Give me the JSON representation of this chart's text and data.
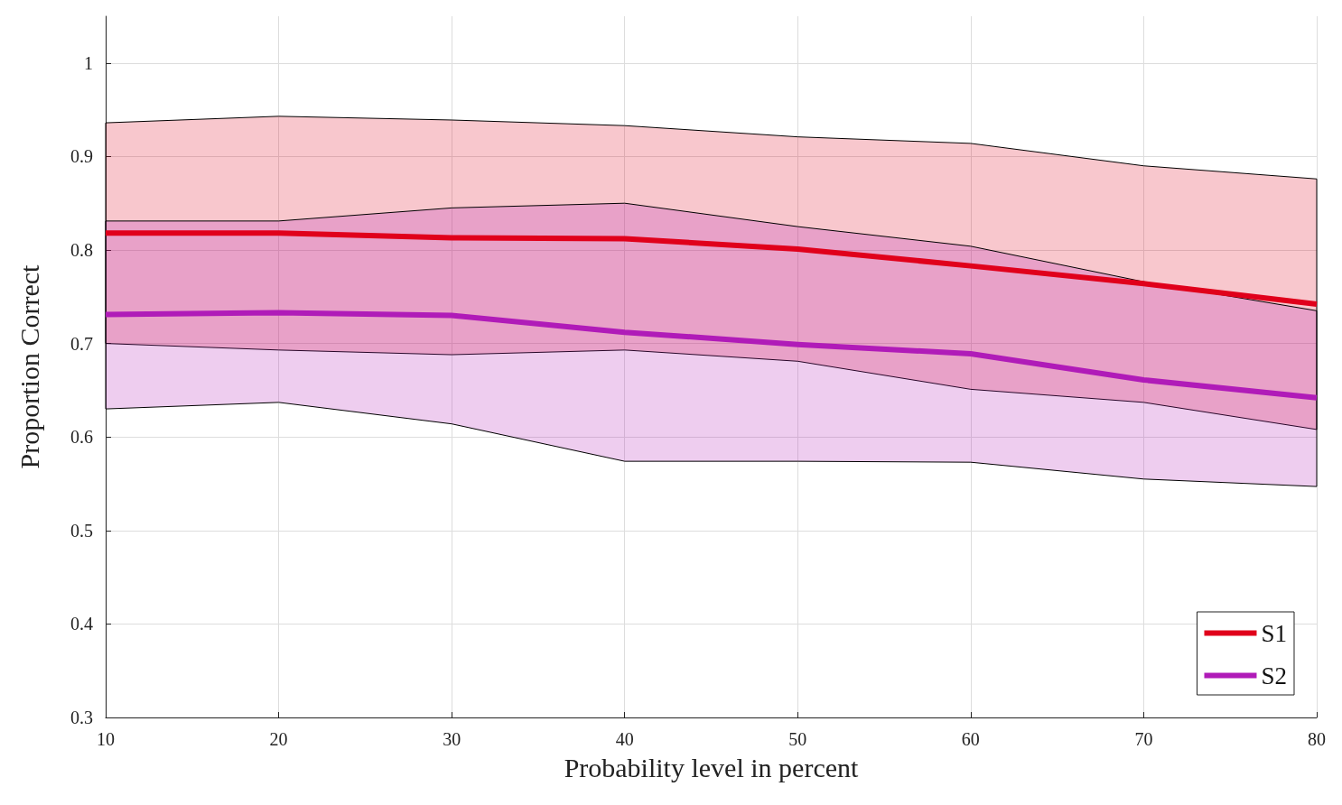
{
  "chart_data": {
    "type": "line",
    "xlabel": "Probability level in percent",
    "ylabel": "Proportion Correct",
    "x": [
      10,
      20,
      30,
      40,
      50,
      60,
      70,
      80
    ],
    "series": [
      {
        "name": "S1",
        "color": "#e0001b",
        "values": [
          0.818,
          0.818,
          0.813,
          0.812,
          0.801,
          0.783,
          0.764,
          0.742
        ],
        "upper": [
          0.936,
          0.943,
          0.939,
          0.933,
          0.921,
          0.914,
          0.89,
          0.876
        ],
        "lower": [
          0.7,
          0.693,
          0.688,
          0.693,
          0.681,
          0.651,
          0.637,
          0.608
        ]
      },
      {
        "name": "S2",
        "color": "#b01bb8",
        "values": [
          0.731,
          0.733,
          0.73,
          0.712,
          0.699,
          0.689,
          0.661,
          0.642
        ],
        "upper": [
          0.831,
          0.831,
          0.845,
          0.85,
          0.825,
          0.804,
          0.766,
          0.735
        ],
        "lower": [
          0.63,
          0.637,
          0.614,
          0.574,
          0.574,
          0.573,
          0.555,
          0.547
        ]
      }
    ],
    "xlim": [
      10,
      80
    ],
    "xticks": [
      10,
      20,
      30,
      40,
      50,
      60,
      70,
      80
    ],
    "ylim": [
      0.3,
      1.05
    ],
    "yticks": [
      0.3,
      0.4,
      0.5,
      0.6,
      0.7,
      0.8,
      0.9,
      1
    ],
    "grid": true,
    "legend": "bottom right",
    "marker": "none",
    "line_style": "solid"
  }
}
